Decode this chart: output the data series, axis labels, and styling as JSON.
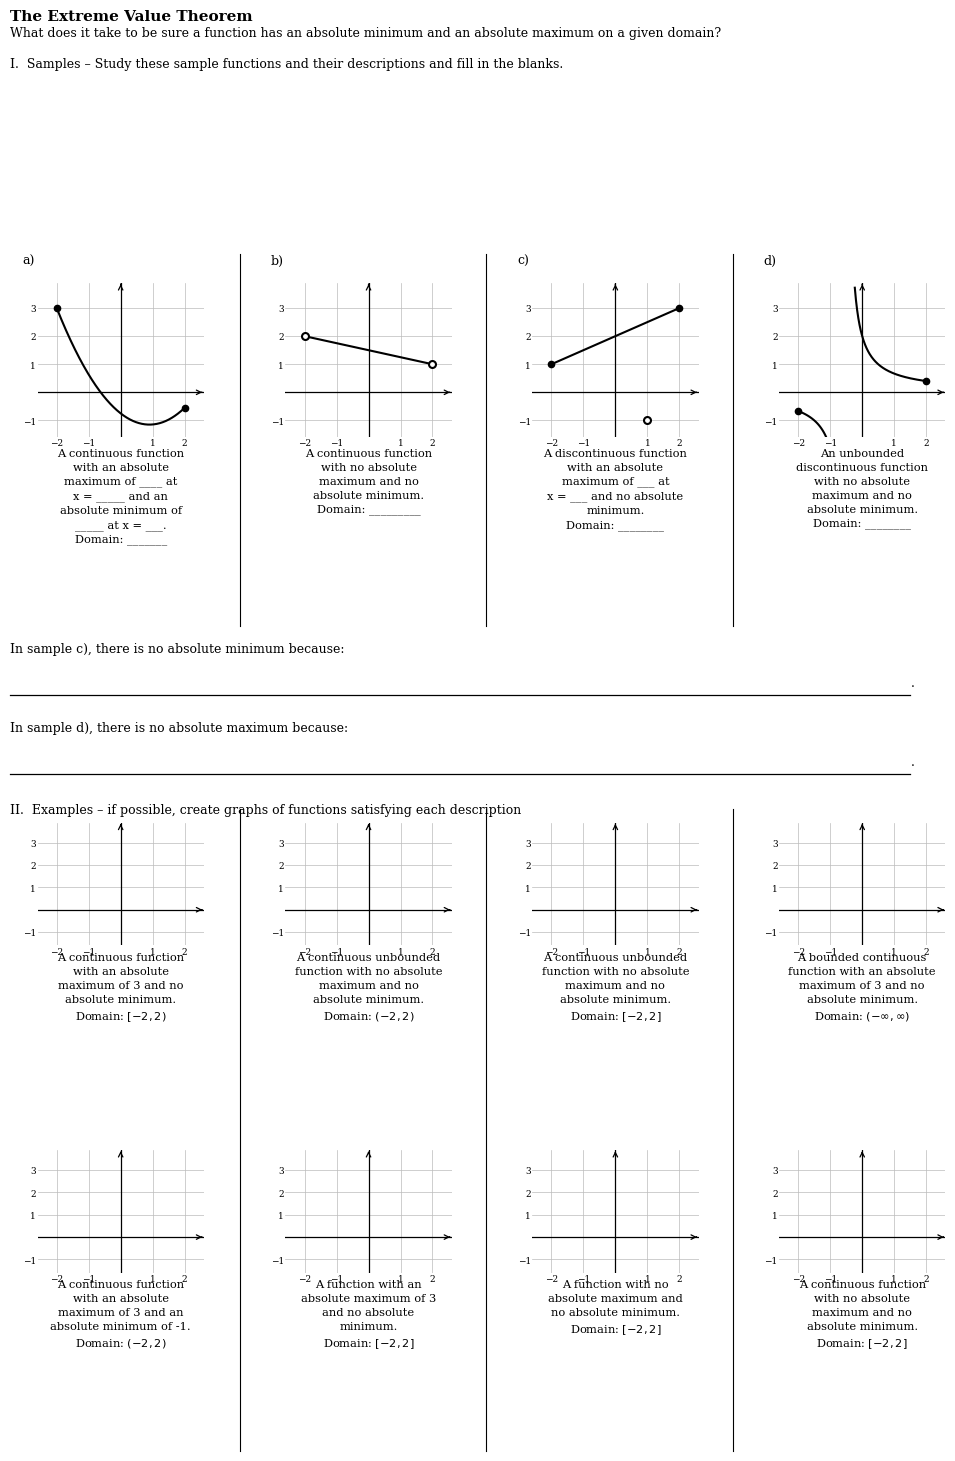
{
  "title": "The Extreme Value Theorem",
  "subtitle": "What does it take to be sure a function has an absolute minimum and an absolute maximum on a given domain?",
  "section1_label": "I.  Samples – Study these sample functions and their descriptions and fill in the blanks.",
  "section2_label": "II.  Examples – if possible, create graphs of functions satisfying each description",
  "sample_labels": [
    "a)",
    "b)",
    "c)",
    "d)"
  ],
  "fill_text_c": "In sample c), there is no absolute minimum because:",
  "fill_text_d": "In sample d), there is no absolute maximum because:",
  "bg_color": "#ffffff",
  "line_color": "#000000",
  "grid_color": "#bbbbbb",
  "desc_a": "A continuous function\nwith an absolute\nmaximum of ____ at\nx = _____ and an\nabsolute minimum of\n_____ at x = ___.\nDomain: _______",
  "desc_b": "A continuous function\nwith no absolute\nmaximum and no\nabsolute minimum.\nDomain: _________",
  "desc_c": "A discontinuous function\nwith an absolute\nmaximum of ___ at\nx = ___ and no absolute\nminimum.\nDomain: ________",
  "desc_d": "An unbounded\ndiscontinuous function\nwith no absolute\nmaximum and no\nabsolute minimum.\nDomain: ________",
  "ex1_desc": "A continuous function\nwith an absolute\nmaximum of 3 and no\nabsolute minimum.\nDomain: $[-2, 2)$",
  "ex2_desc": "A continuous unbounded\nfunction with no absolute\nmaximum and no\nabsolute minimum.\nDomain: $(-2, 2)$",
  "ex3_desc": "A continuous unbounded\nfunction with no absolute\nmaximum and no\nabsolute minimum.\nDomain: $[-2, 2]$",
  "ex4_desc": "A bounded continuous\nfunction with an absolute\nmaximum of 3 and no\nabsolute minimum.\nDomain: $(-\\infty, \\infty)$",
  "ex5_desc": "A continuous function\nwith an absolute\nmaximum of 3 and an\nabsolute minimum of -1.\nDomain: $(-2, 2)$",
  "ex6_desc": "A function with an\nabsolute maximum of 3\nand no absolute\nminimum.\nDomain: $[-2, 2]$",
  "ex7_desc": "A function with no\nabsolute maximum and\nno absolute minimum.\nDomain: $[-2, 2]$",
  "ex8_desc": "A continuous function\nwith no absolute\nmaximum and no\nabsolute minimum.\nDomain: $[-2, 2]$"
}
